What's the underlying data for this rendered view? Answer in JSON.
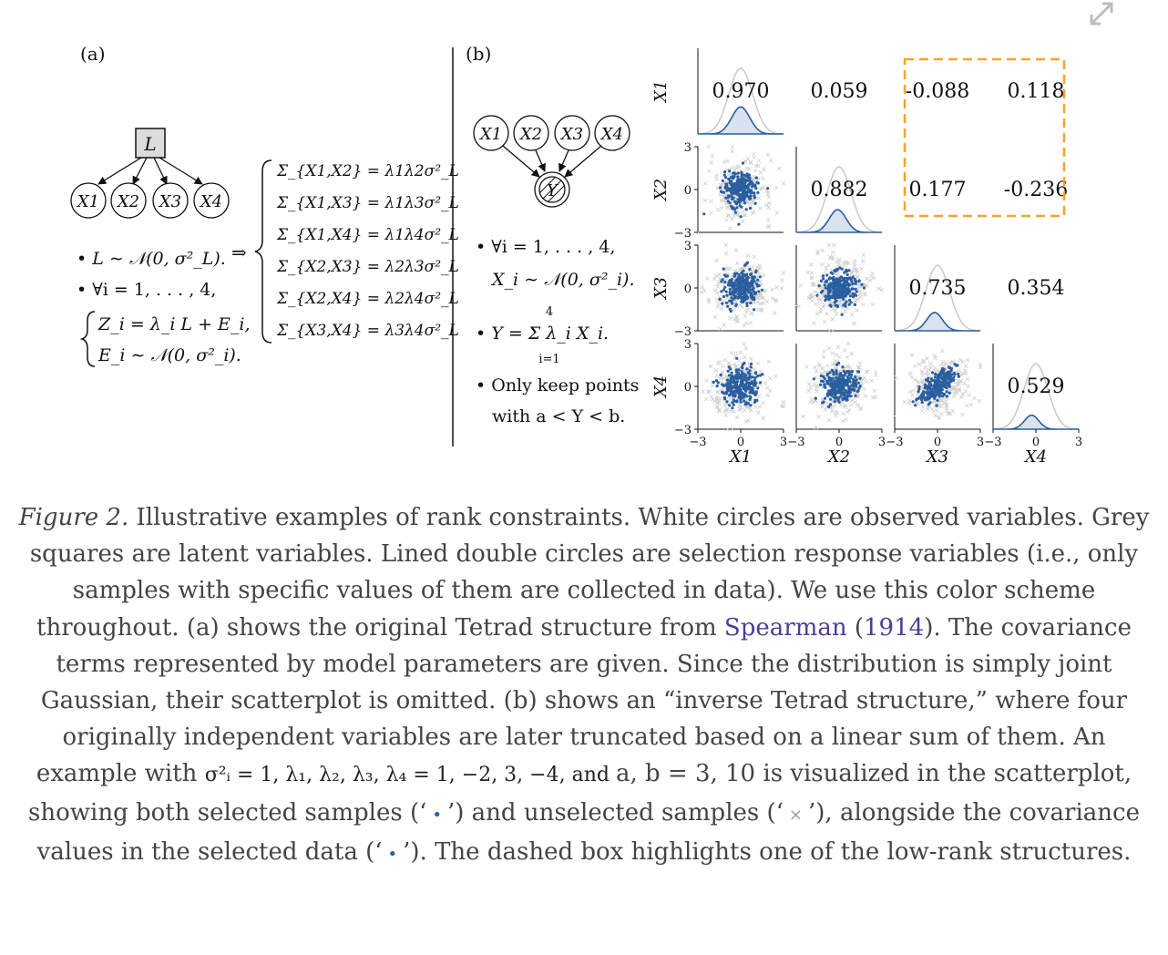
{
  "panel_a": {
    "label": "(a)",
    "latent": "L",
    "observed": [
      "X1",
      "X2",
      "X3",
      "X4"
    ],
    "arrow": "⇒",
    "bullet1": "• L ∼ 𝒩(0, σ²_L).",
    "bullet2": "• ∀i = 1, . . . , 4,",
    "eq1": "Z_i = λ_i L + E_i,",
    "eq2": "E_i ∼ 𝒩(0, σ²_i).",
    "covariances": [
      "Σ_{X1,X2} = λ1λ2σ²_L",
      "Σ_{X1,X3} = λ1λ3σ²_L",
      "Σ_{X1,X4} = λ1λ4σ²_L",
      "Σ_{X2,X3} = λ2λ3σ²_L",
      "Σ_{X2,X4} = λ2λ4σ²_L",
      "Σ_{X3,X4} = λ3λ4σ²_L"
    ]
  },
  "panel_b": {
    "label": "(b)",
    "selection": "Y",
    "observed": [
      "X1",
      "X2",
      "X3",
      "X4"
    ],
    "bullet1": "• ∀i = 1, . . . , 4,",
    "bullet1b": "X_i ∼ 𝒩(0, σ²_i).",
    "bullet2": "• Y = Σ λ_i X_i.",
    "sum_top": "4",
    "sum_bottom": "i=1",
    "bullet3": "• Only keep points",
    "bullet3b": "with a < Y < b."
  },
  "chart_data": {
    "type": "scatter",
    "variables": [
      "X1",
      "X2",
      "X3",
      "X4"
    ],
    "upper_triangle_covariances": [
      {
        "row": "X1",
        "col": "X1",
        "value": "0.970"
      },
      {
        "row": "X1",
        "col": "X2",
        "value": "0.059"
      },
      {
        "row": "X1",
        "col": "X3",
        "value": "-0.088"
      },
      {
        "row": "X1",
        "col": "X4",
        "value": "0.118"
      },
      {
        "row": "X2",
        "col": "X2",
        "value": "0.882"
      },
      {
        "row": "X2",
        "col": "X3",
        "value": "0.177"
      },
      {
        "row": "X2",
        "col": "X4",
        "value": "-0.236"
      },
      {
        "row": "X3",
        "col": "X3",
        "value": "0.735"
      },
      {
        "row": "X3",
        "col": "X4",
        "value": "0.354"
      },
      {
        "row": "X4",
        "col": "X4",
        "value": "0.529"
      }
    ],
    "tick_labels": [
      "−3",
      "0",
      "3"
    ],
    "axis_range": [
      -3,
      3
    ],
    "highlight_box": {
      "rows": [
        "X1",
        "X2"
      ],
      "cols": [
        "X3",
        "X4"
      ],
      "style": "dashed",
      "color": "#f4a52a"
    },
    "selected_color": "#2a5fa0",
    "unselected_color": "#cfcfcf"
  },
  "caption": {
    "fig_label": "Figure 2.",
    "part1": " Illustrative examples of rank constraints. White circles are observed variables. Grey squares are latent variables. Lined double circles are selection response variables (i.e., only samples with specific values of them are collected in data). We use this color scheme throughout. (a) shows the original Tetrad structure from ",
    "cite_name": "Spearman",
    "cite_open": " (",
    "cite_year": "1914",
    "cite_close": ").",
    "part2": " The covariance terms represented by model parameters are given. Since the distribution is simply joint Gaussian, their scatterplot is omitted. (b) shows an “inverse Tetrad structure,” where four originally independent variables are later truncated based on a linear sum of them. An example with ",
    "math1": " σ²ᵢ = 1, λ₁, λ₂, λ₃, λ₄ = 1, −2, 3, −4, and ",
    "math2": " a, b = 3, 10",
    "part3": " is visualized in the scatterplot, showing both selected samples (‘",
    "dot": "•",
    "part4": "’) and unselected samples (‘",
    "cross": "×",
    "part5": "’), alongside the covariance values in the selected data (‘",
    "part6": "’). The dashed box highlights one of the low-rank structures."
  }
}
